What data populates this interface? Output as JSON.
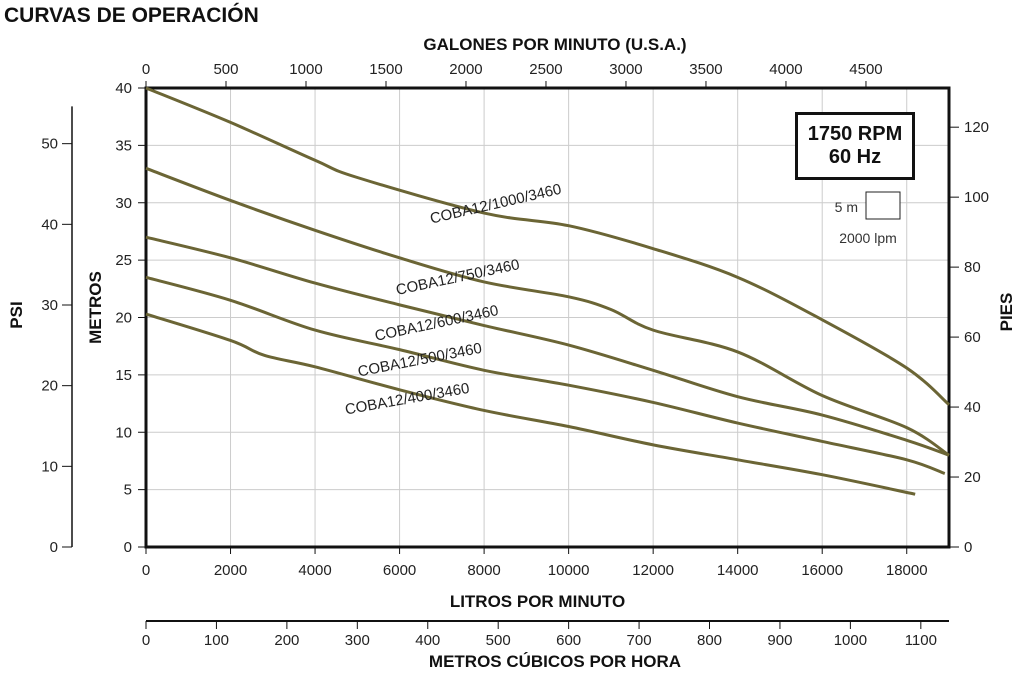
{
  "title": "CURVAS DE OPERACIÓN",
  "rpm_box": {
    "line1": "1750 RPM",
    "line2": "60 Hz"
  },
  "scale_legend": {
    "vertical": "5 m",
    "horizontal": "2000 lpm"
  },
  "chart_data": {
    "type": "line",
    "title": "CURVAS DE OPERACIÓN",
    "xlabel": "LITROS POR MINUTO",
    "ylabel": "METROS",
    "xlim": [
      0,
      19000
    ],
    "ylim": [
      0,
      40
    ],
    "grid": true,
    "x_ticks": [
      0,
      2000,
      4000,
      6000,
      8000,
      10000,
      12000,
      14000,
      16000,
      18000
    ],
    "y_ticks": [
      0,
      5,
      10,
      15,
      20,
      25,
      30,
      35,
      40
    ],
    "top_axis": {
      "label": "GALONES POR MINUTO (U.S.A.)",
      "ticks": [
        0,
        500,
        1000,
        1500,
        2000,
        2500,
        3000,
        3500,
        4000,
        4500
      ],
      "max": 5019
    },
    "bottom_axis2": {
      "label": "METROS CÚBICOS POR HORA",
      "ticks": [
        0,
        100,
        200,
        300,
        400,
        500,
        600,
        700,
        800,
        900,
        1000,
        1100
      ],
      "max": 1140
    },
    "left_axis2": {
      "label": "PSI",
      "ticks": [
        0,
        10,
        20,
        30,
        40,
        50
      ],
      "max": 56.9
    },
    "right_axis": {
      "label": "PIES",
      "ticks": [
        0,
        20,
        40,
        60,
        80,
        100,
        120
      ],
      "max": 131.2
    },
    "series": [
      {
        "name": "COBA12/1000/3460",
        "x": [
          0,
          2000,
          4000,
          5000,
          8000,
          10000,
          12000,
          14000,
          16000,
          18000,
          19000
        ],
        "y": [
          40,
          37,
          33.7,
          32.2,
          29.1,
          28,
          26,
          23.5,
          19.8,
          15.6,
          12.4
        ]
      },
      {
        "name": "COBA12/750/3460",
        "x": [
          0,
          2000,
          4000,
          6000,
          8000,
          10000,
          11000,
          12000,
          14000,
          16000,
          18000,
          19000
        ],
        "y": [
          33,
          30.2,
          27.6,
          25.2,
          23.1,
          21.8,
          20.7,
          18.9,
          17,
          13.2,
          10.4,
          8
        ]
      },
      {
        "name": "COBA12/600/3460",
        "x": [
          0,
          2000,
          4000,
          6000,
          8000,
          10000,
          12000,
          14000,
          16000,
          18000,
          19000
        ],
        "y": [
          27,
          25.2,
          23,
          21.1,
          19.3,
          17.6,
          15.4,
          13.1,
          11.5,
          9.3,
          8
        ]
      },
      {
        "name": "COBA12/500/3460",
        "x": [
          0,
          2000,
          4000,
          6000,
          8000,
          10000,
          12000,
          14000,
          16000,
          18000,
          18900
        ],
        "y": [
          23.5,
          21.5,
          18.9,
          17.2,
          15.4,
          14.1,
          12.6,
          10.8,
          9.2,
          7.6,
          6.4
        ]
      },
      {
        "name": "COBA12/400/3460",
        "x": [
          0,
          2000,
          2800,
          4000,
          6000,
          8000,
          10000,
          12000,
          14000,
          16000,
          18200
        ],
        "y": [
          20.3,
          18,
          16.7,
          15.7,
          13.7,
          11.9,
          10.5,
          8.9,
          7.6,
          6.3,
          4.6
        ]
      }
    ],
    "series_color": "#6b6535"
  }
}
